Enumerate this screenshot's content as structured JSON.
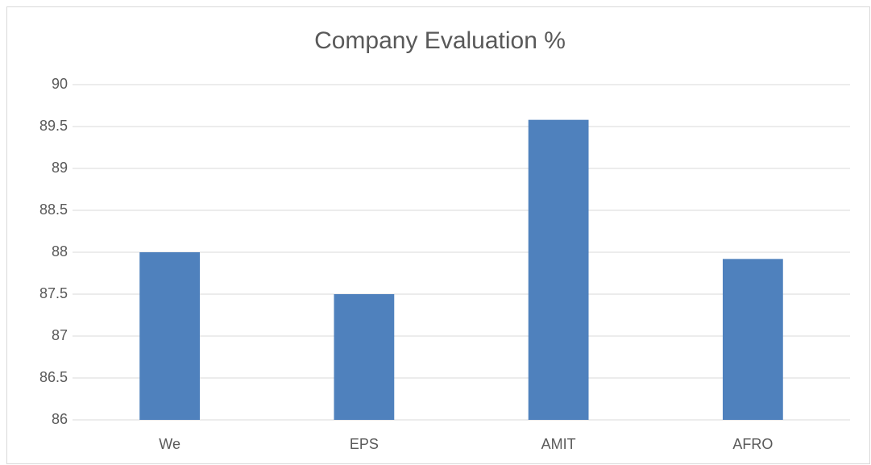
{
  "chart_data": {
    "type": "bar",
    "title": "Company Evaluation %",
    "categories": [
      "We",
      "EPS",
      "AMIT",
      "AFRO"
    ],
    "values": [
      88,
      87.5,
      89.58,
      87.92
    ],
    "color": "#4f81bd",
    "ylim": [
      86,
      90
    ],
    "yticks": [
      86,
      86.5,
      87,
      87.5,
      88,
      88.5,
      89,
      89.5,
      90
    ],
    "grid": true
  }
}
